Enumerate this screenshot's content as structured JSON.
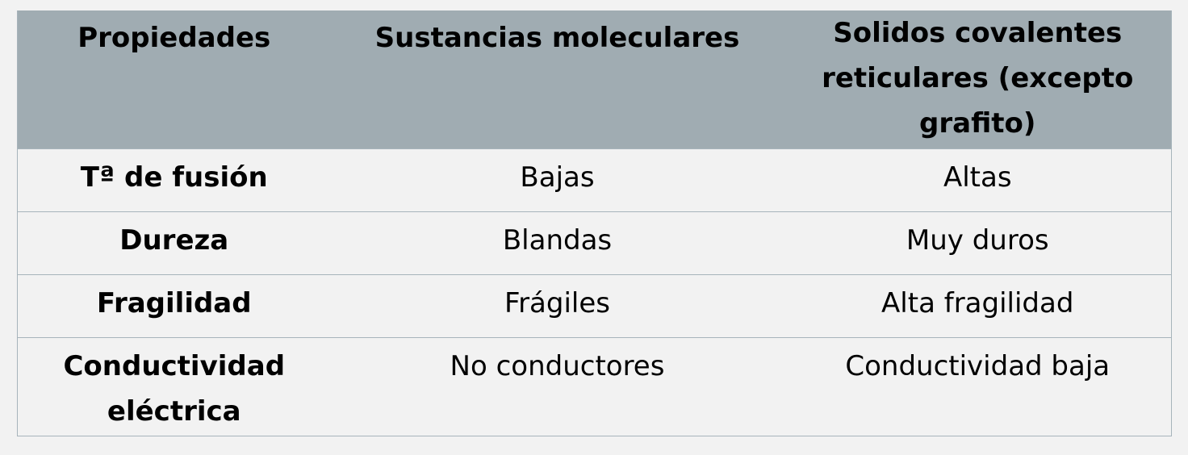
{
  "table": {
    "headers": [
      "Propiedades",
      "Sustancias moleculares",
      "Solidos covalentes reticulares (excepto grafito)"
    ],
    "rows": [
      [
        "Tª de fusión",
        "Bajas",
        "Altas"
      ],
      [
        "Dureza",
        "Blandas",
        "Muy duros"
      ],
      [
        "Fragilidad",
        "Frágiles",
        "Alta fragilidad"
      ],
      [
        "Conductividad eléctrica",
        "No conductores",
        "Conductividad baja"
      ]
    ]
  },
  "colors": {
    "header_bg": "#a0acb2",
    "body_bg": "#f2f2f2",
    "border": "#a7b4bb"
  }
}
